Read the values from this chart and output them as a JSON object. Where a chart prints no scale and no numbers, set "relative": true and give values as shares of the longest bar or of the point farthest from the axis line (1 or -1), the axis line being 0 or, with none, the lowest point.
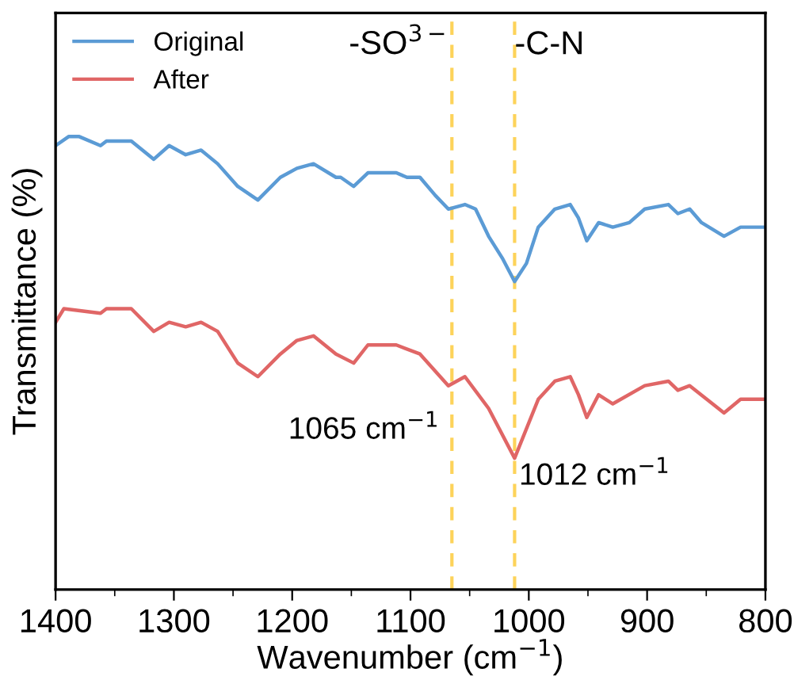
{
  "chart_data": {
    "type": "line",
    "relative": true,
    "xlabel": "Wavenumber (cm$^{−1}$)",
    "ylabel": "Transmittance (%)",
    "xlim": [
      1400,
      800
    ],
    "xticks": [
      1400,
      1300,
      1200,
      1100,
      1000,
      900,
      800
    ],
    "legend": "top left",
    "grid": false,
    "series": [
      {
        "name": "Original",
        "color": "#5b9bd5",
        "x": [
          1400,
          1389,
          1380,
          1362,
          1357,
          1336,
          1317,
          1304,
          1290,
          1277,
          1263,
          1246,
          1229,
          1210,
          1196,
          1182,
          1163,
          1159,
          1148,
          1136,
          1128,
          1116,
          1112,
          1103,
          1092,
          1079,
          1068,
          1054,
          1045,
          1034,
          1022,
          1012,
          1002,
          992,
          978,
          965,
          958,
          951,
          941,
          929,
          915,
          902,
          882,
          874,
          864,
          854,
          835,
          821,
          800
        ],
        "values": [
          0.98,
          1.0,
          1.0,
          0.98,
          0.99,
          0.99,
          0.95,
          0.98,
          0.96,
          0.97,
          0.94,
          0.89,
          0.86,
          0.91,
          0.93,
          0.94,
          0.91,
          0.91,
          0.89,
          0.92,
          0.92,
          0.92,
          0.92,
          0.91,
          0.91,
          0.87,
          0.84,
          0.85,
          0.84,
          0.78,
          0.73,
          0.68,
          0.72,
          0.8,
          0.84,
          0.85,
          0.82,
          0.77,
          0.81,
          0.8,
          0.81,
          0.84,
          0.85,
          0.83,
          0.84,
          0.81,
          0.78,
          0.8,
          0.8
        ]
      },
      {
        "name": "After",
        "color": "#e06666",
        "x": [
          1400,
          1393,
          1362,
          1357,
          1336,
          1317,
          1304,
          1290,
          1277,
          1263,
          1246,
          1229,
          1210,
          1196,
          1182,
          1163,
          1148,
          1136,
          1128,
          1116,
          1112,
          1092,
          1068,
          1054,
          1034,
          1012,
          992,
          978,
          965,
          958,
          951,
          941,
          929,
          902,
          882,
          874,
          864,
          835,
          821,
          800
        ],
        "values": [
          0.59,
          0.62,
          0.61,
          0.62,
          0.62,
          0.57,
          0.59,
          0.58,
          0.59,
          0.57,
          0.5,
          0.47,
          0.52,
          0.55,
          0.56,
          0.52,
          0.5,
          0.54,
          0.54,
          0.54,
          0.54,
          0.52,
          0.45,
          0.47,
          0.4,
          0.29,
          0.42,
          0.46,
          0.47,
          0.43,
          0.38,
          0.43,
          0.41,
          0.45,
          0.46,
          0.44,
          0.45,
          0.39,
          0.42,
          0.42
        ]
      }
    ],
    "ref_lines": [
      {
        "axis": "x",
        "value": 1065,
        "label": "-SO$^{3−}$",
        "color": "#fdd35a",
        "line_style": "dashed"
      },
      {
        "axis": "x",
        "value": 1012,
        "label": "-C-N",
        "color": "#fdd35a",
        "line_style": "dashed"
      }
    ],
    "annotations": [
      {
        "text": "1065 cm$^{−1}$",
        "x": 1068,
        "y": 0.45
      },
      {
        "text": "1012 cm$^{−1}$",
        "x": 1012,
        "y": 0.29
      }
    ]
  }
}
